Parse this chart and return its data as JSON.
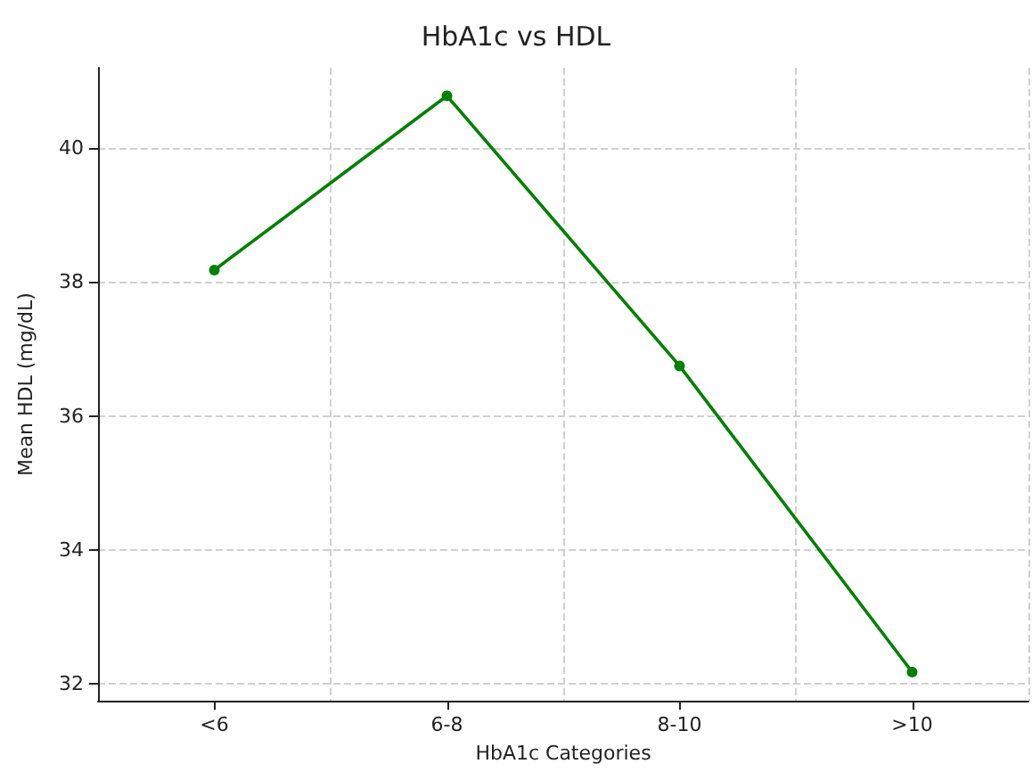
{
  "chart_data": {
    "type": "line",
    "title": "HbA1c vs HDL",
    "xlabel": "HbA1c Categories",
    "ylabel": "Mean HDL (mg/dL)",
    "categories": [
      "<6",
      "6-8",
      "8-10",
      ">10"
    ],
    "series": [
      {
        "color": "#008000",
        "values": [
          38.18,
          40.78,
          36.75,
          32.18
        ]
      }
    ],
    "ylim": [
      31.75,
      41.2
    ],
    "yticks": [
      32,
      34,
      36,
      38,
      40
    ],
    "grid": true,
    "marker": "circle",
    "line_style": "solid"
  }
}
